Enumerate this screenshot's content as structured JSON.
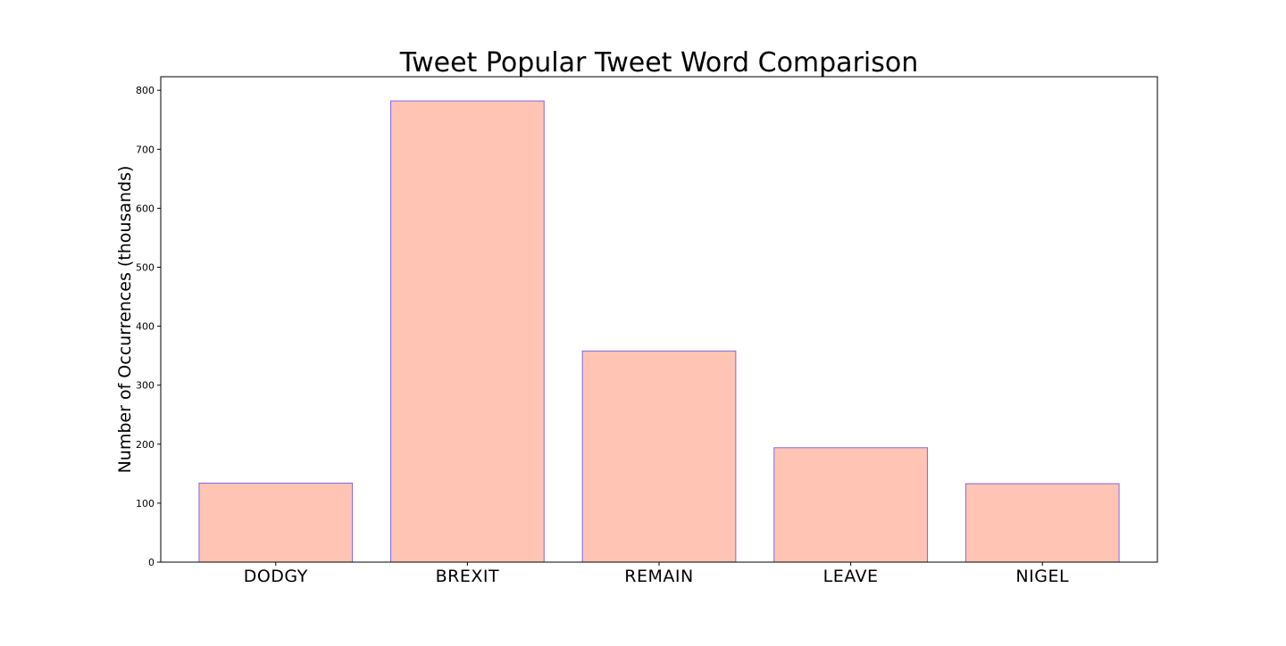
{
  "chart_data": {
    "type": "bar",
    "title": "Tweet Popular Tweet Word Comparison",
    "xlabel": "",
    "ylabel": "Number of Occurrences (thousands)",
    "categories": [
      "DODGY",
      "BREXIT",
      "REMAIN",
      "LEAVE",
      "NIGEL"
    ],
    "values": [
      134,
      782,
      358,
      194,
      133
    ],
    "ylim": [
      0,
      823
    ],
    "yticks": [
      0,
      100,
      200,
      300,
      400,
      500,
      600,
      700,
      800
    ],
    "grid": false,
    "legend": "none",
    "bar_fill_color": "#ffc4b4",
    "bar_edge_color": "#7b68ee"
  }
}
